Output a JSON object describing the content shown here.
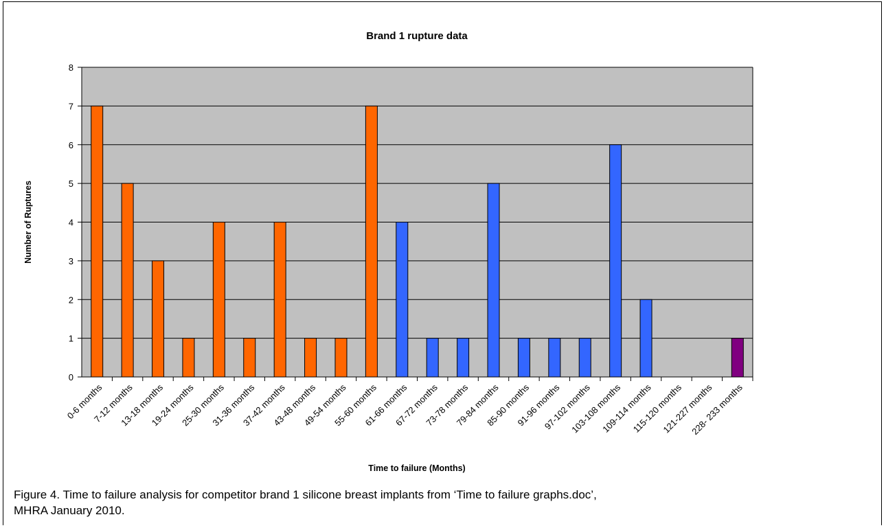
{
  "figure": {
    "caption_line1": "Figure 4. Time to failure analysis for competitor brand 1 silicone breast implants from ‘Time to failure graphs.doc’,",
    "caption_line2": "MHRA January 2010."
  },
  "colors": {
    "plot_bg": "#c0c0c0",
    "gridline": "#000000",
    "orange": "#ff6600",
    "blue": "#3366ff",
    "purple": "#800080"
  },
  "chart_data": {
    "type": "bar",
    "title": "Brand 1 rupture data",
    "xlabel": "Time to failure (Months)",
    "ylabel": "Number of Ruptures",
    "ylim": [
      0,
      8
    ],
    "yticks": [
      0,
      1,
      2,
      3,
      4,
      5,
      6,
      7,
      8
    ],
    "grid": true,
    "legend": "none",
    "categories": [
      "0-6 months",
      "7-12 months",
      "13-18 months",
      "19-24 months",
      "25-30 months",
      "31-36 months",
      "37-42 months",
      "43-48 months",
      "49-54 months",
      "55-60 months",
      "61-66 months",
      "67-72 months",
      "73-78 months",
      "79-84 months",
      "85-90 months",
      "91-96 months",
      "97-102 months",
      "103-108 months",
      "109-114 months",
      "115-120 months",
      "121-227 months",
      "228- 233 months"
    ],
    "values": [
      7,
      5,
      3,
      1,
      4,
      1,
      4,
      1,
      1,
      7,
      4,
      1,
      1,
      5,
      1,
      1,
      1,
      6,
      2,
      0,
      0,
      1
    ],
    "bar_colors": [
      "orange",
      "orange",
      "orange",
      "orange",
      "orange",
      "orange",
      "orange",
      "orange",
      "orange",
      "orange",
      "blue",
      "blue",
      "blue",
      "blue",
      "blue",
      "blue",
      "blue",
      "blue",
      "blue",
      "blue",
      "blue",
      "purple"
    ]
  }
}
